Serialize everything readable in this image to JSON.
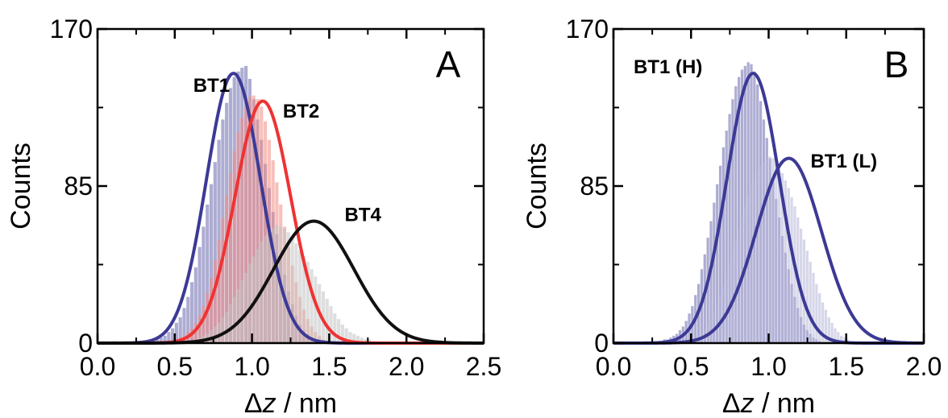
{
  "colors": {
    "bt1_fill": "#6a67ad",
    "bt1_curve": "#3c3a95",
    "bt2_fill": "#f28c84",
    "bt2_curve": "#ee3333",
    "bt4_fill": "#c2c2c2",
    "bt4_curve": "#111111",
    "bt1_low_fill": "#b7b6d8"
  },
  "chart_data": [
    {
      "type": "bar",
      "panel": "A",
      "xlabel_prefix": "Δ",
      "xlabel_var": "z",
      "xlabel_suffix": " / nm",
      "ylabel": "Counts",
      "xlim": [
        0.0,
        2.5
      ],
      "ylim": [
        0,
        170
      ],
      "xticks": [
        0.0,
        0.5,
        1.0,
        1.5,
        2.0,
        2.5
      ],
      "xtick_labels": [
        "0.0",
        "0.5",
        "1.0",
        "1.5",
        "2.0",
        "2.5"
      ],
      "yticks": [
        0,
        85,
        170
      ],
      "ytick_labels": [
        "0",
        "85",
        "170"
      ],
      "bin_width": 0.025,
      "series": [
        {
          "name": "BT1",
          "label_x": 0.62,
          "label_y": 136,
          "fill": "bt1_fill",
          "curve": "bt1_curve",
          "fit": {
            "amplitude": 146,
            "center": 0.88,
            "sigma": 0.175
          },
          "hist_x0": 0.1,
          "hist_counts": [
            1,
            0,
            0,
            1,
            0,
            1,
            0,
            1,
            1,
            1,
            2,
            2,
            3,
            4,
            6,
            8,
            11,
            14,
            19,
            25,
            33,
            41,
            52,
            63,
            75,
            86,
            98,
            110,
            121,
            130,
            138,
            144,
            147,
            149,
            150,
            143,
            132,
            121,
            110,
            97,
            84,
            71,
            59,
            47,
            37,
            28,
            21,
            15,
            10,
            7,
            5,
            3,
            2,
            1,
            1
          ]
        },
        {
          "name": "BT2",
          "label_x": 1.2,
          "label_y": 122,
          "fill": "bt2_fill",
          "curve": "bt2_curve",
          "fit": {
            "amplitude": 131,
            "center": 1.07,
            "sigma": 0.18
          },
          "hist_x0": 0.5,
          "hist_counts": [
            2,
            3,
            4,
            6,
            8,
            11,
            15,
            20,
            27,
            35,
            45,
            56,
            68,
            80,
            92,
            104,
            114,
            122,
            128,
            133,
            134,
            132,
            128,
            120,
            110,
            99,
            87,
            75,
            63,
            52,
            42,
            33,
            25,
            18,
            13,
            9,
            6,
            4,
            2,
            1
          ]
        },
        {
          "name": "BT4",
          "label_x": 1.6,
          "label_y": 66,
          "fill": "bt4_fill",
          "curve": "bt4_curve",
          "fit": {
            "amplitude": 66,
            "center": 1.4,
            "sigma": 0.26
          },
          "hist_x0": 0.6,
          "hist_counts": [
            1,
            2,
            3,
            4,
            5,
            7,
            9,
            11,
            14,
            17,
            21,
            25,
            29,
            34,
            38,
            43,
            47,
            51,
            55,
            58,
            61,
            62,
            64,
            63,
            62,
            60,
            57,
            54,
            50,
            47,
            44,
            40,
            36,
            32,
            28,
            24,
            20,
            16,
            13,
            10,
            8,
            6,
            5,
            4,
            3,
            2,
            2,
            1
          ]
        }
      ],
      "panel_label": "A"
    },
    {
      "type": "bar",
      "panel": "B",
      "xlabel_prefix": "Δ",
      "xlabel_var": "z",
      "xlabel_suffix": " / nm",
      "ylabel": "Counts",
      "xlim": [
        0.0,
        2.0
      ],
      "ylim": [
        0,
        170
      ],
      "xticks": [
        0.0,
        0.5,
        1.0,
        1.5,
        2.0
      ],
      "xtick_labels": [
        "0.0",
        "0.5",
        "1.0",
        "1.5",
        "2.0"
      ],
      "yticks": [
        0,
        85,
        170
      ],
      "ytick_labels": [
        "0",
        "85",
        "170"
      ],
      "bin_width": 0.02,
      "series": [
        {
          "name": "BT1 (H)",
          "label_x": 0.13,
          "label_y": 146,
          "fill": "bt1_fill",
          "curve": "bt1_curve",
          "fit": {
            "amplitude": 146,
            "center": 0.9,
            "sigma": 0.17
          },
          "hist_x0": 0.2,
          "hist_counts": [
            1,
            0,
            0,
            0,
            1,
            1,
            2,
            2,
            3,
            4,
            5,
            7,
            9,
            12,
            16,
            20,
            26,
            32,
            40,
            48,
            57,
            66,
            76,
            86,
            96,
            106,
            115,
            124,
            132,
            139,
            144,
            148,
            150,
            152,
            151,
            147,
            140,
            131,
            121,
            111,
            100,
            89,
            78,
            68,
            58,
            49,
            40,
            32,
            25,
            19,
            14,
            10,
            7,
            5,
            3,
            2,
            1
          ]
        },
        {
          "name": "BT1 (L)",
          "label_x": 1.27,
          "label_y": 95,
          "fill": "bt1_low_fill",
          "curve": "bt1_curve",
          "fit": {
            "amplitude": 100,
            "center": 1.13,
            "sigma": 0.21
          },
          "hist_x0": 0.5,
          "hist_counts": [
            2,
            3,
            4,
            6,
            8,
            10,
            13,
            17,
            21,
            26,
            31,
            37,
            43,
            50,
            56,
            62,
            68,
            74,
            80,
            85,
            89,
            93,
            96,
            98,
            100,
            101,
            100,
            98,
            95,
            92,
            88,
            84,
            79,
            74,
            68,
            62,
            56,
            50,
            44,
            38,
            32,
            27,
            22,
            18,
            14,
            11,
            8,
            6,
            4,
            3,
            2,
            1
          ]
        }
      ],
      "panel_label": "B"
    }
  ]
}
